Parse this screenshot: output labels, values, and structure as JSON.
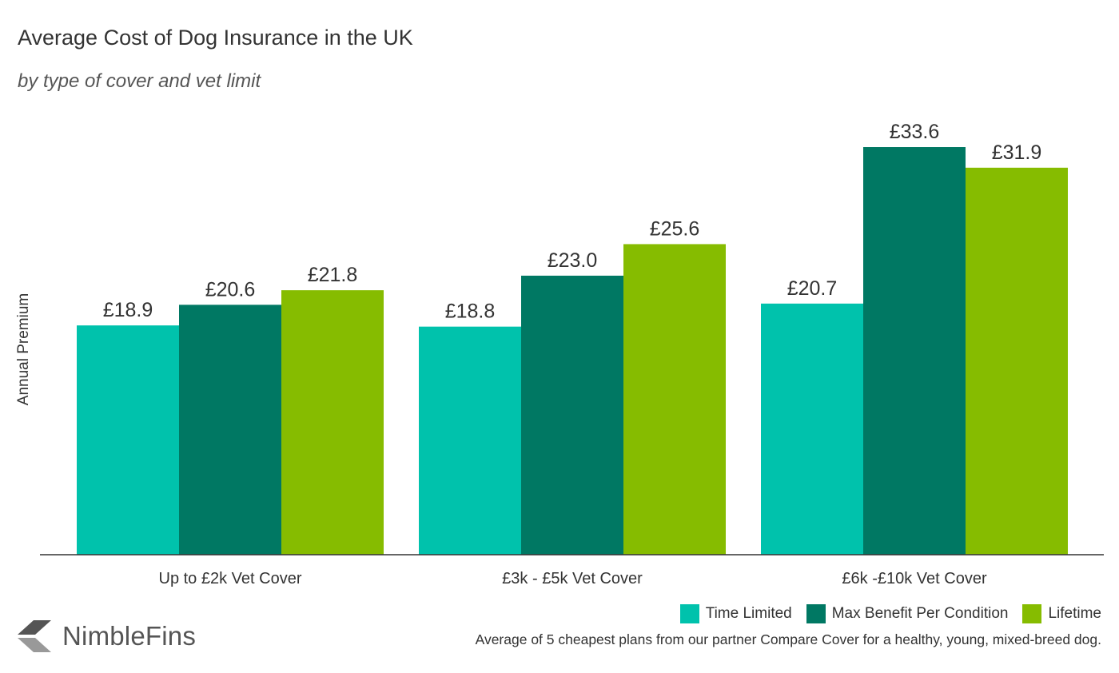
{
  "title": "Average Cost of Dog Insurance in the UK",
  "subtitle": "by type of cover and vet limit",
  "brand": "NimbleFins",
  "note": "Average of 5 cheapest plans from our partner Compare Cover for a healthy, young, mixed-breed dog.",
  "colors": {
    "time_limited": "#00c2ac",
    "max_benefit": "#007863",
    "lifetime": "#86bc00",
    "axis": "#333333",
    "logo": "#555555"
  },
  "chart_data": {
    "type": "bar",
    "title": "Average Cost of Dog Insurance in the UK",
    "subtitle": "by type of cover and vet limit",
    "xlabel": "",
    "ylabel": "Annual Premium",
    "ylim": [
      0,
      36.5
    ],
    "grid": false,
    "legend_position": "bottom-right",
    "categories": [
      "Up to £2k Vet Cover",
      "£3k - £5k Vet Cover",
      "£6k -£10k Vet Cover"
    ],
    "series": [
      {
        "name": "Time Limited",
        "color": "#00c2ac",
        "values": [
          18.9,
          18.8,
          20.7
        ],
        "labels": [
          "£18.9",
          "£18.8",
          "£20.7"
        ]
      },
      {
        "name": "Max Benefit Per Condition",
        "color": "#007863",
        "values": [
          20.6,
          23.0,
          33.6
        ],
        "labels": [
          "£20.6",
          "£23.0",
          "£33.6"
        ]
      },
      {
        "name": "Lifetime",
        "color": "#86bc00",
        "values": [
          21.8,
          25.6,
          31.9
        ],
        "labels": [
          "£21.8",
          "£25.6",
          "£31.9"
        ]
      }
    ]
  }
}
